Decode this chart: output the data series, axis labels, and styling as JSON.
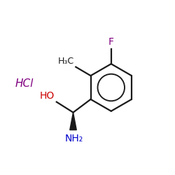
{
  "background_color": "#ffffff",
  "bond_color": "#1a1a1a",
  "F_color": "#800080",
  "F_label": "F",
  "methyl_color": "#1a1a1a",
  "methyl_label": "H₃C",
  "NH2_label": "NH₂",
  "NH2_color": "#0000cc",
  "HO_label": "HO",
  "HO_color": "#cc0000",
  "HCl_label": "HCl",
  "HCl_color": "#800080",
  "figsize": [
    2.5,
    2.5
  ],
  "dpi": 100
}
